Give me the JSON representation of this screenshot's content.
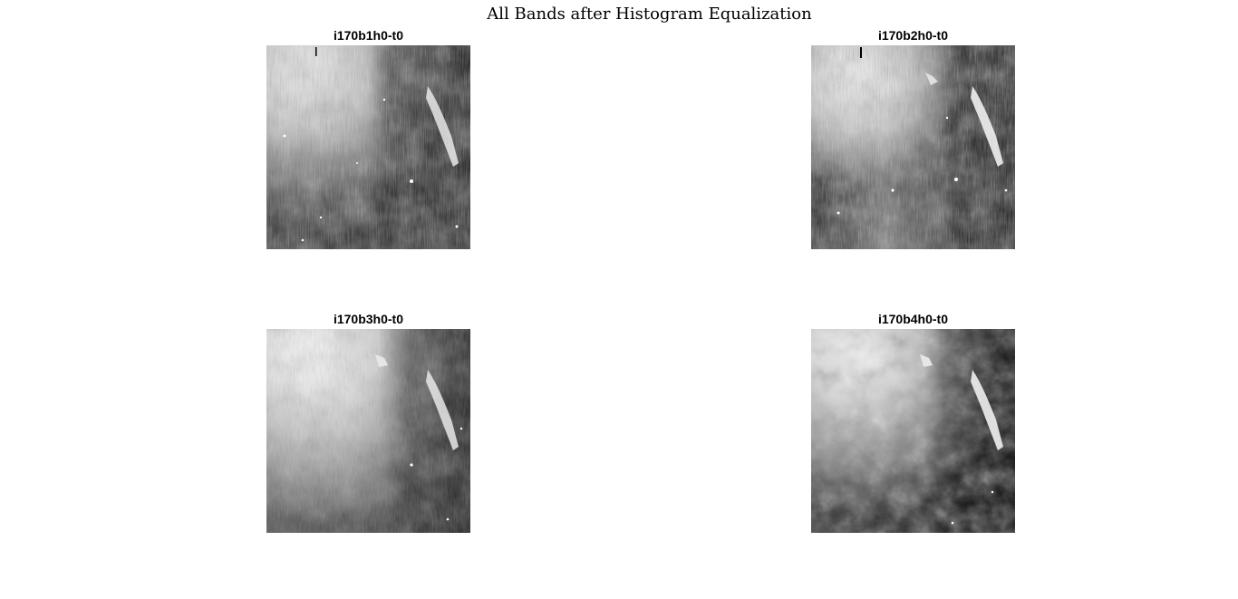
{
  "figure": {
    "title": "All Bands after Histogram Equalization"
  },
  "panels": [
    {
      "title": "i170b1h0-t0"
    },
    {
      "title": "i170b2h0-t0"
    },
    {
      "title": "i170b3h0-t0"
    },
    {
      "title": "i170b4h0-t0"
    }
  ]
}
